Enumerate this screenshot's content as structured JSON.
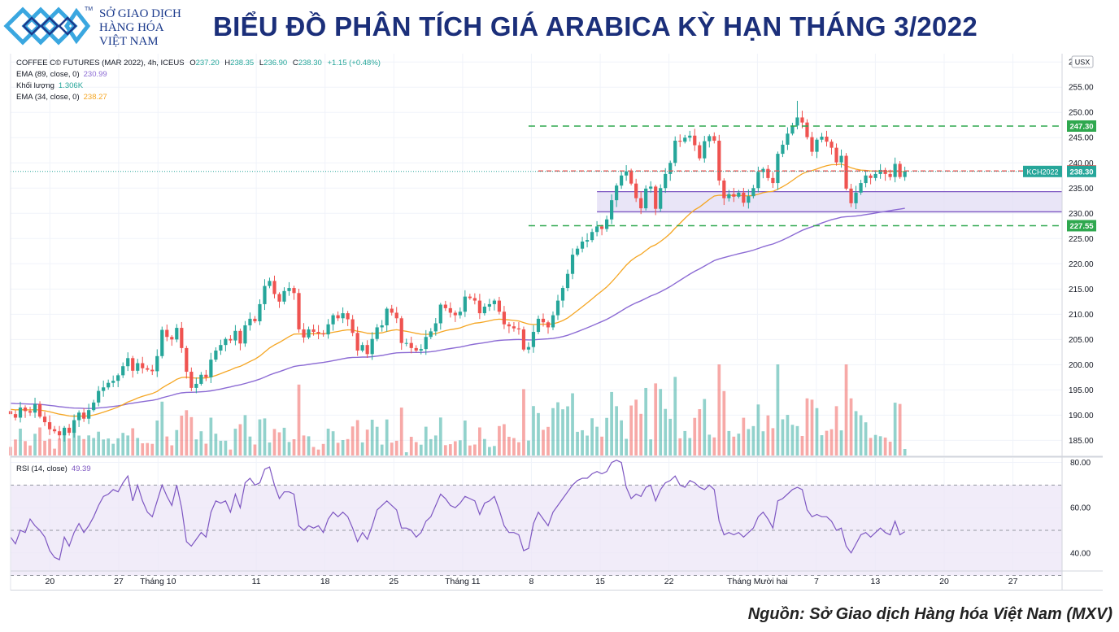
{
  "header": {
    "logo_lines": [
      "SỞ GIAO DỊCH",
      "HÀNG HÓA",
      "VIỆT NAM"
    ],
    "logo_tm": "TM",
    "title": "BIỂU ĐỒ PHÂN TÍCH GIÁ ARABICA KỲ HẠN THÁNG 3/2022"
  },
  "legend": {
    "symbol_line": "COFFEE C© FUTURES (MAR 2022), 4h, ICEUS",
    "ohlc_labels": [
      "O",
      "H",
      "L",
      "C"
    ],
    "ohlc_values": [
      "237.20",
      "238.35",
      "236.90",
      "238.30"
    ],
    "change": "+1.15 (+0.48%)",
    "ema89_label": "EMA (89, close, 0)",
    "ema89_value": "230.99",
    "volume_label": "Khối lượng",
    "volume_value": "1.306K",
    "ema34_label": "EMA (34, close, 0)",
    "ema34_value": "238.27",
    "rsi_label": "RSI (14, close)",
    "rsi_value": "49.39",
    "currency": "USX"
  },
  "colors": {
    "up": "#26a69a",
    "down": "#ef5350",
    "ema34": "#f5a623",
    "ema89": "#8c6bd4",
    "support_resistance": "#2fa84f",
    "price_line": "#ef5350",
    "rsi_line": "#7e57c2",
    "rsi_band": "#ece6f7",
    "zone_fill": "#e4dff5"
  },
  "source": "Nguồn: Sở Giao dịch Hàng hóa Việt Nam (MXV)",
  "chart_data": [
    {
      "type": "candlestick",
      "title": "COFFEE C© FUTURES (MAR 2022), 4h, ICEUS",
      "ylim": [
        182,
        261
      ],
      "y_ticks": [
        185,
        190,
        195,
        200,
        205,
        210,
        215,
        220,
        225,
        230,
        235,
        240,
        245,
        250,
        255,
        260
      ],
      "y_tick_labels": [
        "185.00",
        "190.00",
        "195.00",
        "200.00",
        "205.00",
        "210.00",
        "215.00",
        "220.00",
        "225.00",
        "230.00",
        "235.00",
        "240.00",
        "245.00",
        "250.00",
        "255.00",
        "260.00"
      ],
      "x_tick_labels": [
        "20",
        "27",
        "Tháng 10",
        "11",
        "18",
        "25",
        "Tháng 11",
        "8",
        "15",
        "22",
        "Tháng Mười hai",
        "7",
        "13",
        "20",
        "27"
      ],
      "x_tick_dates": [
        "2021-09-20",
        "2021-09-27",
        "2021-10-01",
        "2021-10-11",
        "2021-10-18",
        "2021-10-25",
        "2021-11-01",
        "2021-11-08",
        "2021-11-15",
        "2021-11-22",
        "2021-12-01",
        "2021-12-07",
        "2021-12-13",
        "2021-12-20",
        "2021-12-27"
      ],
      "x_range": [
        "2021-09-16",
        "2022-01-01"
      ],
      "series": [
        {
          "name": "Price",
          "x_start": "2021-09-16",
          "x_end": "2021-12-16",
          "close": [
            190.2,
            189.5,
            191.5,
            190.8,
            190.5,
            192.2,
            189.7,
            188.6,
            187.2,
            186.8,
            186.0,
            187.5,
            186.5,
            189.0,
            190.5,
            189.3,
            191.0,
            192.5,
            194.8,
            195.5,
            196.4,
            196.8,
            197.9,
            199.7,
            201.3,
            198.8,
            200.3,
            199.3,
            199.0,
            198.7,
            201.7,
            206.9,
            205.5,
            205.0,
            207.3,
            203.3,
            198.6,
            195.4,
            196.2,
            198.0,
            197.5,
            201.0,
            202.8,
            203.9,
            205.1,
            204.8,
            206.7,
            204.2,
            207.8,
            209.1,
            208.6,
            212.0,
            215.6,
            216.6,
            214.0,
            212.5,
            214.6,
            215.2,
            214.2,
            207.0,
            205.4,
            207.0,
            206.5,
            206.2,
            206.0,
            208.0,
            209.8,
            209.2,
            210.2,
            209.0,
            206.3,
            202.8,
            203.9,
            202.1,
            205.1,
            207.4,
            207.8,
            211.1,
            210.3,
            209.2,
            204.3,
            204.3,
            203.3,
            202.8,
            203.1,
            205.5,
            206.6,
            208.2,
            211.9,
            211.2,
            210.3,
            209.8,
            210.5,
            213.5,
            213.2,
            212.7,
            210.2,
            211.5,
            212.0,
            212.7,
            210.5,
            208.0,
            207.6,
            207.2,
            207.0,
            203.0,
            203.5,
            206.5,
            209.1,
            208.4,
            207.4,
            209.8,
            212.7,
            215.2,
            218.0,
            221.8,
            223.0,
            224.4,
            224.7,
            226.3,
            227.4,
            226.9,
            228.8,
            232.6,
            235.5,
            237.5,
            238.3,
            235.9,
            233.0,
            231.0,
            234.9,
            235.3,
            230.9,
            235.0,
            237.8,
            240.0,
            244.4,
            244.2,
            245.0,
            245.4,
            243.5,
            240.9,
            244.3,
            245.3,
            244.4,
            236.5,
            233.0,
            233.8,
            233.3,
            234.1,
            232.1,
            233.4,
            235.0,
            238.2,
            238.8,
            237.0,
            236.0,
            241.8,
            243.6,
            245.8,
            247.4,
            249.0,
            248.0,
            245.1,
            242.2,
            244.6,
            245.2,
            244.2,
            243.0,
            240.1,
            241.4,
            234.9,
            232.0,
            234.1,
            236.0,
            237.5,
            237.0,
            237.8,
            238.6,
            237.8,
            237.2,
            239.8,
            237.2,
            238.3
          ],
          "high": 252.3,
          "low": 185.2
        },
        {
          "name": "EMA (89, close, 0)",
          "last": 230.99
        },
        {
          "name": "EMA (34, close, 0)",
          "last": 238.27
        },
        {
          "name": "Khối lượng",
          "last": "1.306K"
        }
      ],
      "price_labels": [
        {
          "label": "",
          "value": "247.30",
          "kind": "level"
        },
        {
          "label": "",
          "value": "238.40",
          "kind": "price"
        },
        {
          "label": "KCH2022",
          "value": "238.30",
          "kind": "last"
        },
        {
          "label": "",
          "value": "227.55",
          "kind": "level"
        }
      ],
      "support_resistance": [
        247.3,
        227.55
      ],
      "horizontal_price": 238.4,
      "zone": [
        230.3,
        234.3
      ],
      "grid": true,
      "legend": "top-left"
    },
    {
      "type": "line",
      "title": "RSI (14, close)",
      "ylim": [
        32,
        82
      ],
      "y_ticks": [
        40,
        60,
        80
      ],
      "y_tick_labels": [
        "40.00",
        "60.00",
        "80.00"
      ],
      "band": [
        30,
        70
      ],
      "midline": 50,
      "series": [
        {
          "name": "RSI (14, close)",
          "x_start": "2021-09-16",
          "x_end": "2021-12-16",
          "values": [
            47,
            44,
            50,
            49,
            55,
            52,
            50,
            47,
            41,
            38,
            37,
            47,
            43,
            49,
            53,
            49,
            52,
            56,
            61,
            65,
            66,
            68,
            67,
            71,
            74,
            63,
            70,
            63,
            58,
            56,
            63,
            70,
            65,
            61,
            70,
            60,
            45,
            43,
            46,
            49,
            47,
            58,
            63,
            62,
            63,
            58,
            66,
            60,
            71,
            73,
            70,
            71,
            77,
            78,
            70,
            64,
            67,
            67,
            66,
            52,
            50,
            52,
            51,
            52,
            49,
            55,
            58,
            56,
            58,
            56,
            51,
            45,
            49,
            46,
            52,
            59,
            61,
            63,
            61,
            59,
            51,
            51,
            50,
            47,
            49,
            54,
            56,
            61,
            66,
            64,
            61,
            60,
            62,
            65,
            64,
            63,
            57,
            62,
            63,
            65,
            59,
            52,
            49,
            49,
            48,
            41,
            42,
            53,
            58,
            55,
            52,
            58,
            61,
            64,
            67,
            70,
            72,
            73,
            73,
            75,
            76,
            75,
            76,
            80,
            81,
            80,
            69,
            64,
            66,
            65,
            69,
            70,
            63,
            68,
            71,
            72,
            74,
            70,
            69,
            72,
            71,
            69,
            68,
            70,
            68,
            54,
            48,
            49,
            48,
            49,
            47,
            49,
            51,
            56,
            58,
            55,
            51,
            63,
            64,
            66,
            68,
            69,
            68,
            59,
            56,
            57,
            56,
            56,
            54,
            50,
            51,
            43,
            40,
            44,
            48,
            49,
            47,
            49,
            51,
            49,
            48,
            54,
            48,
            49.4
          ],
          "last": 49.39
        }
      ],
      "grid": true,
      "legend": "top-left"
    }
  ]
}
